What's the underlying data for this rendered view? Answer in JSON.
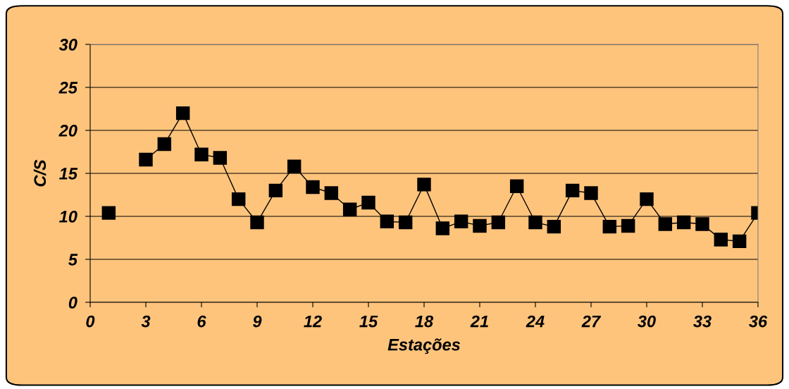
{
  "chart_data": {
    "type": "line",
    "xlabel": "Estações",
    "ylabel": "C/S",
    "x": [
      1,
      2,
      3,
      4,
      5,
      6,
      7,
      8,
      9,
      10,
      11,
      12,
      13,
      14,
      15,
      16,
      17,
      18,
      19,
      20,
      21,
      22,
      23,
      24,
      25,
      26,
      27,
      28,
      29,
      30,
      31,
      32,
      33,
      34,
      35,
      36
    ],
    "series": [
      {
        "color": "#000000",
        "values": [
          10.4,
          null,
          16.6,
          18.4,
          22.0,
          17.2,
          16.8,
          12.0,
          9.3,
          13.0,
          15.8,
          13.4,
          12.7,
          10.8,
          11.6,
          9.4,
          9.3,
          13.7,
          8.6,
          9.4,
          8.9,
          9.3,
          13.5,
          9.3,
          8.8,
          13.0,
          12.7,
          8.8,
          8.9,
          12.0,
          9.1,
          9.3,
          9.1,
          7.3,
          7.1,
          10.4
        ]
      }
    ],
    "xlim": [
      0,
      36
    ],
    "xticks": [
      0,
      3,
      6,
      9,
      12,
      15,
      18,
      21,
      24,
      27,
      30,
      33,
      36
    ],
    "ylim": [
      0,
      30
    ],
    "yticks": [
      0,
      5,
      10,
      15,
      20,
      25,
      30
    ],
    "grid": "y",
    "marker": "square",
    "line_style": "solid",
    "legend": false
  }
}
